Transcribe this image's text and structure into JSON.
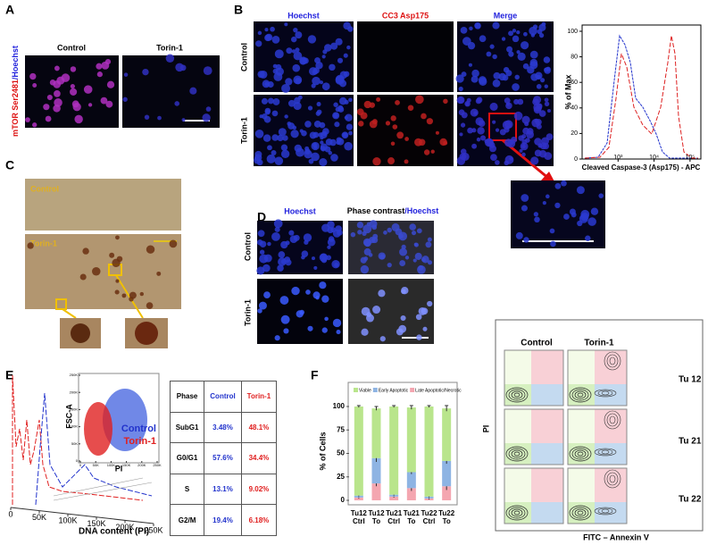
{
  "panel_a": {
    "label": "A",
    "columns": [
      "Control",
      "Torin-1"
    ],
    "ylabel_red": "mTOR Ser2481",
    "ylabel_blue": "/Hoechst"
  },
  "panel_b": {
    "label": "B",
    "columns": [
      "Hoechst",
      "CC3 Asp175",
      "Merge"
    ],
    "rows": [
      "Control",
      "Torin-1"
    ],
    "histogram": {
      "ylabel": "% of Max",
      "ylim": [
        0,
        100
      ],
      "yticks": [
        0,
        20,
        40,
        60,
        80,
        100
      ],
      "xscale": "log",
      "xlim": [
        100,
        200000
      ],
      "xticks": [
        {
          "value": 1000,
          "label": "10³"
        },
        {
          "value": 10000,
          "label": "10⁴"
        },
        {
          "value": 100000,
          "label": "10⁵"
        }
      ],
      "xlabel": "Cleaved Caspase-3 (Asp175) - APC"
    }
  },
  "panel_c": {
    "label": "C",
    "images": [
      "Control",
      "Torin-1"
    ]
  },
  "panel_d": {
    "label": "D",
    "column1": "Hoechst",
    "column2_black": "Phase contrast",
    "column2_blue": "/Hoechst",
    "rows": [
      "Control",
      "Torin-1"
    ]
  },
  "panel_e": {
    "label": "E",
    "histogram": {
      "xlim": [
        0,
        250000
      ],
      "xticks": [
        {
          "value": 0,
          "label": "0"
        },
        {
          "value": 50000,
          "label": "50K"
        },
        {
          "value": 100000,
          "label": "100K"
        },
        {
          "value": 150000,
          "label": "150K"
        },
        {
          "value": 200000,
          "label": "200K"
        },
        {
          "value": 250000,
          "label": "250K"
        }
      ],
      "xlabel": "DNA content (PI)"
    },
    "scatter": {
      "ylabel": "FSC-A",
      "xlabel": "PI",
      "lim": [
        0,
        250000
      ],
      "ticks": [
        {
          "value": 0,
          "label": "0"
        },
        {
          "value": 50000,
          "label": "50K"
        },
        {
          "value": 100000,
          "label": "100K"
        },
        {
          "value": 150000,
          "label": "150K"
        },
        {
          "value": 200000,
          "label": "200K"
        },
        {
          "value": 250000,
          "label": "250K"
        }
      ]
    },
    "legend": [
      {
        "name": "Control",
        "color": "#2233cc"
      },
      {
        "name": "Torin-1",
        "color": "#e02020"
      }
    ],
    "table": {
      "header": [
        "Phase",
        "Control",
        "Torin-1"
      ],
      "rows": [
        [
          "SubG1",
          "3.48%",
          "48.1%"
        ],
        [
          "G0/G1",
          "57.6%",
          "34.4%"
        ],
        [
          "S",
          "13.1%",
          "9.02%"
        ],
        [
          "G2/M",
          "19.4%",
          "6.18%"
        ]
      ]
    }
  },
  "panel_f": {
    "label": "F",
    "type": "bar",
    "stacked": true,
    "ylabel": "% of Cells",
    "ylim": [
      0,
      100
    ],
    "yticks": [
      0,
      25,
      50,
      75,
      100
    ],
    "categories": [
      "Tu12 Ctrl",
      "Tu12 To",
      "Tu21 Ctrl",
      "Tu21 To",
      "Tu22 Ctrl",
      "Tu22 To"
    ],
    "series": [
      {
        "name": "Late Apoptotic/Necrotic",
        "color": "#f4a6b0",
        "values": [
          3,
          18,
          4,
          13,
          2,
          15
        ],
        "errors": [
          1,
          3,
          1,
          3,
          1,
          4
        ]
      },
      {
        "name": "Early Apoptotic",
        "color": "#8eb4e3",
        "values": [
          2,
          27,
          2,
          17,
          2,
          27
        ],
        "errors": [
          1,
          4,
          1,
          2,
          1,
          3
        ]
      },
      {
        "name": "Viable",
        "color": "#b9e58c",
        "values": [
          95,
          53,
          94,
          69,
          96,
          56
        ],
        "errors": [
          1,
          2,
          1,
          2,
          1,
          3
        ]
      }
    ]
  },
  "panel_flow": {
    "columns": [
      "Control",
      "Torin-1"
    ],
    "rows": [
      "Tu 12",
      "Tu 21",
      "Tu 22"
    ],
    "ylabel": "PI",
    "xlabel": "FITC – Annexin V"
  }
}
